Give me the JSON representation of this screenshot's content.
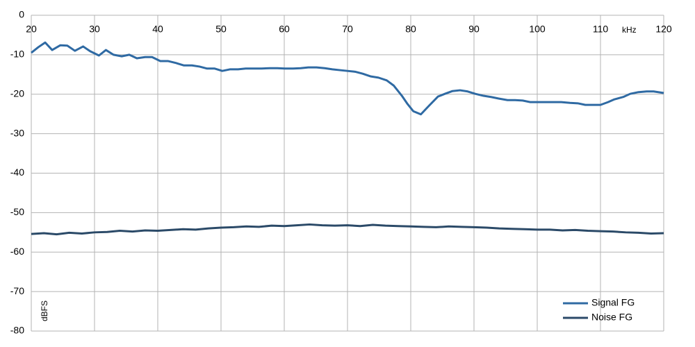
{
  "chart_data": {
    "type": "line",
    "x_label": "kHz",
    "y_label": "dBFS",
    "xlim": [
      20,
      120
    ],
    "xticks": [
      20,
      30,
      40,
      50,
      60,
      70,
      80,
      90,
      100,
      110,
      120
    ],
    "ylim": [
      -80,
      0
    ],
    "yticks": [
      0,
      -10,
      -20,
      -30,
      -40,
      -50,
      -60,
      -70,
      -80
    ],
    "grid": true,
    "legend": "lower right",
    "series": [
      {
        "name": "Signal FG",
        "color": "#2f6aa3",
        "x": [
          20,
          21.1,
          22.2,
          23.3,
          24.6,
          25.7,
          26.9,
          28.2,
          29.3,
          30.7,
          31.8,
          33.0,
          34.3,
          35.5,
          36.7,
          38.0,
          39.1,
          40.4,
          41.6,
          42.9,
          44.1,
          45.4,
          46.6,
          47.8,
          49.0,
          50.2,
          51.4,
          52.7,
          53.9,
          55.2,
          56.4,
          57.7,
          58.9,
          60.1,
          61.4,
          62.6,
          63.8,
          65.1,
          66.4,
          67.6,
          68.8,
          70.0,
          71.2,
          72.4,
          73.7,
          74.9,
          76.2,
          77.3,
          78.6,
          79.5,
          80.4,
          81.6,
          82.9,
          84.3,
          85.4,
          86.6,
          87.8,
          89.0,
          90.2,
          91.5,
          92.7,
          93.9,
          95.3,
          96.5,
          97.7,
          98.9,
          100.2,
          101.4,
          102.6,
          103.8,
          105.2,
          106.4,
          107.6,
          108.8,
          110.0,
          111.2,
          112.2,
          113.6,
          114.7,
          115.9,
          117.3,
          118.4,
          120
        ],
        "values": [
          -9.5,
          -8.1,
          -6.9,
          -8.8,
          -7.6,
          -7.7,
          -9.0,
          -7.9,
          -9.1,
          -10.2,
          -8.8,
          -10.0,
          -10.4,
          -10.0,
          -10.9,
          -10.6,
          -10.6,
          -11.6,
          -11.6,
          -12.1,
          -12.7,
          -12.7,
          -13.0,
          -13.5,
          -13.5,
          -14.1,
          -13.7,
          -13.7,
          -13.5,
          -13.5,
          -13.5,
          -13.4,
          -13.4,
          -13.5,
          -13.5,
          -13.4,
          -13.2,
          -13.2,
          -13.4,
          -13.7,
          -13.9,
          -14.1,
          -14.3,
          -14.8,
          -15.5,
          -15.8,
          -16.5,
          -17.8,
          -20.4,
          -22.5,
          -24.3,
          -25.1,
          -22.9,
          -20.6,
          -19.9,
          -19.2,
          -19.0,
          -19.3,
          -19.9,
          -20.4,
          -20.7,
          -21.1,
          -21.5,
          -21.5,
          -21.6,
          -22.0,
          -22.0,
          -22.0,
          -22.0,
          -22.0,
          -22.2,
          -22.3,
          -22.7,
          -22.7,
          -22.7,
          -22.0,
          -21.3,
          -20.7,
          -19.9,
          -19.5,
          -19.3,
          -19.3,
          -19.7
        ]
      },
      {
        "name": "Noise FG",
        "color": "#2b4a68",
        "x": [
          20,
          22,
          24,
          26,
          28,
          30,
          32,
          34,
          36,
          38,
          40,
          42,
          44,
          46,
          48,
          50,
          52,
          54,
          56,
          58,
          60,
          62,
          64,
          66,
          68,
          70,
          72,
          74,
          76,
          78,
          80,
          82,
          84,
          86,
          88,
          90,
          92,
          94,
          96,
          98,
          100,
          102,
          104,
          106,
          108,
          110,
          112,
          114,
          116,
          118,
          120
        ],
        "values": [
          -55.4,
          -55.2,
          -55.5,
          -55.1,
          -55.3,
          -55.0,
          -54.9,
          -54.6,
          -54.8,
          -54.5,
          -54.6,
          -54.4,
          -54.2,
          -54.3,
          -54.0,
          -53.8,
          -53.7,
          -53.5,
          -53.6,
          -53.3,
          -53.4,
          -53.2,
          -53.0,
          -53.2,
          -53.3,
          -53.2,
          -53.4,
          -53.1,
          -53.3,
          -53.4,
          -53.5,
          -53.6,
          -53.7,
          -53.5,
          -53.6,
          -53.7,
          -53.8,
          -54.0,
          -54.1,
          -54.2,
          -54.3,
          -54.3,
          -54.5,
          -54.4,
          -54.6,
          -54.7,
          -54.8,
          -55.0,
          -55.1,
          -55.3,
          -55.2
        ]
      }
    ]
  }
}
